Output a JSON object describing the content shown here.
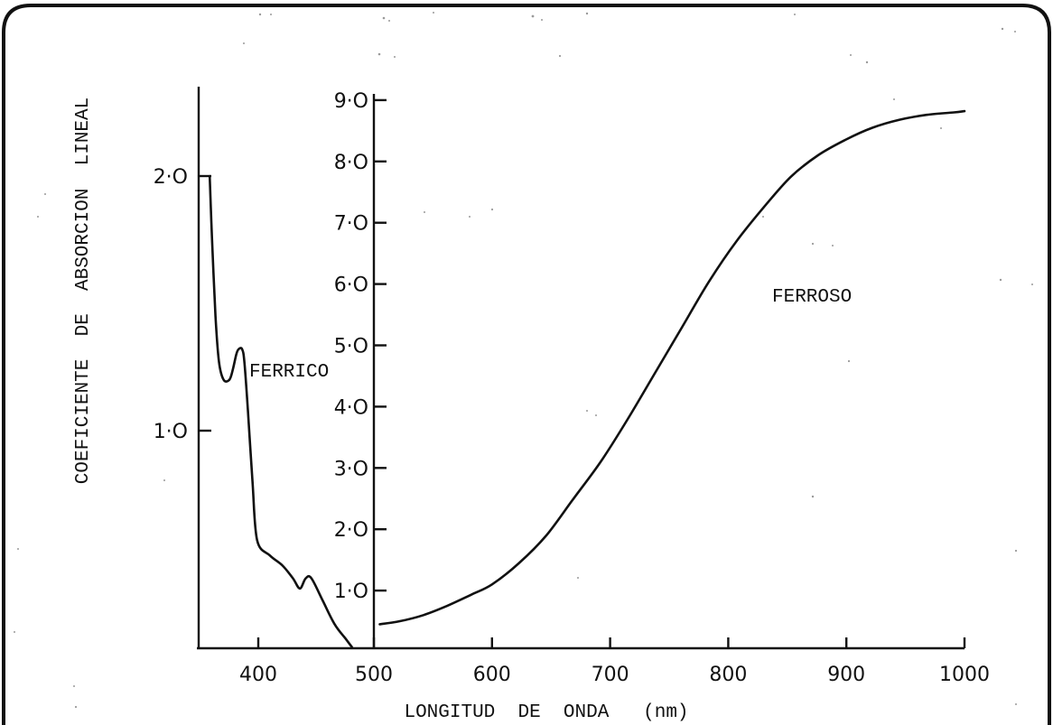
{
  "chart_data": {
    "type": "line",
    "xlabel": "LONGITUD  DE  ONDA   (nm)",
    "ylabel": "COEFICIENTE  DE  ABSORCION  LINEAL",
    "x_axis": {
      "ticks": [
        "400",
        "500",
        "600",
        "700",
        "800",
        "900",
        "1000"
      ],
      "range": [
        350,
        1000
      ]
    },
    "y_axes": [
      {
        "id": "left",
        "ticks": [
          "1·O",
          "2·O"
        ],
        "tick_values": [
          1.0,
          2.0
        ],
        "range": [
          0.0,
          2.4
        ]
      },
      {
        "id": "right",
        "ticks": [
          "1·O",
          "2·O",
          "3·O",
          "4·O",
          "5·O",
          "6·O",
          "7·O",
          "8·O",
          "9·O"
        ],
        "tick_values": [
          1,
          2,
          3,
          4,
          5,
          6,
          7,
          8,
          9
        ],
        "range": [
          0.0,
          9.3
        ]
      }
    ],
    "series": [
      {
        "name": "FERRICO",
        "axis": "left",
        "x": [
          358,
          360,
          363,
          366,
          370,
          375,
          378,
          381,
          383,
          386,
          388,
          391,
          395,
          399,
          410,
          421,
          430,
          436,
          441,
          446,
          456,
          466,
          476,
          481
        ],
        "y": [
          2.0,
          1.75,
          1.45,
          1.27,
          1.2,
          1.2,
          1.24,
          1.3,
          1.32,
          1.32,
          1.27,
          1.08,
          0.8,
          0.57,
          0.51,
          0.47,
          0.42,
          0.38,
          0.42,
          0.42,
          0.33,
          0.24,
          0.18,
          0.15
        ]
      },
      {
        "name": "FERROSO",
        "axis": "right",
        "x": [
          505,
          522,
          542,
          562,
          582,
          600,
          623,
          646,
          669,
          692,
          715,
          738,
          761,
          784,
          807,
          830,
          853,
          876,
          899,
          922,
          945,
          968,
          991,
          1000
        ],
        "y": [
          0.45,
          0.5,
          0.6,
          0.75,
          0.93,
          1.1,
          1.45,
          1.9,
          2.5,
          3.1,
          3.8,
          4.55,
          5.3,
          6.05,
          6.7,
          7.25,
          7.75,
          8.1,
          8.35,
          8.55,
          8.68,
          8.76,
          8.8,
          8.82
        ]
      }
    ],
    "annotations": [
      {
        "text": "FERRICO",
        "series": "FERRICO"
      },
      {
        "text": "FERROSO",
        "series": "FERROSO"
      }
    ]
  }
}
